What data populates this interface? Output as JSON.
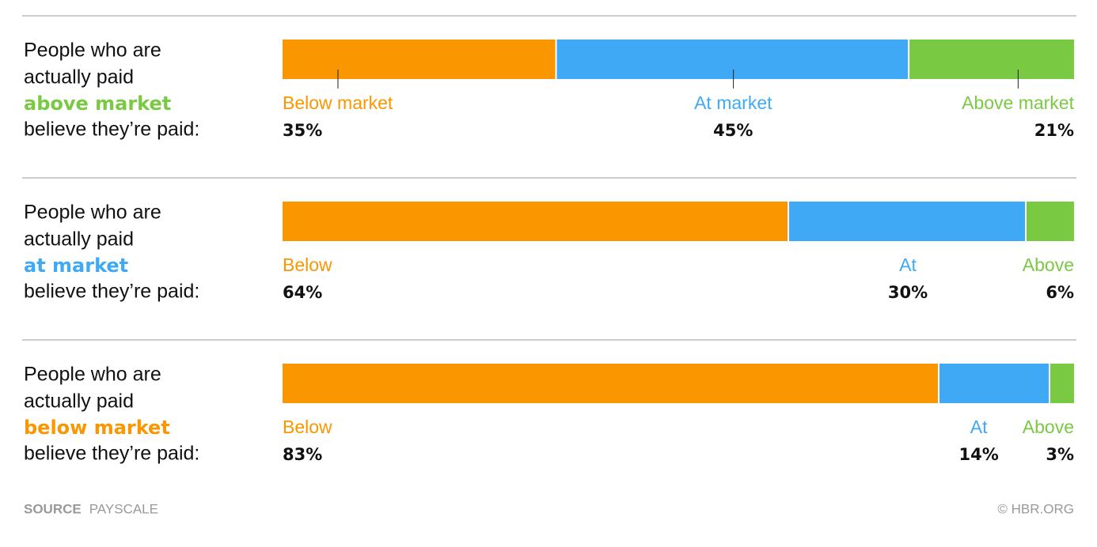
{
  "chart_data": [
    {
      "type": "bar",
      "stacked": true,
      "orientation": "horizontal",
      "leaders": true,
      "intro_lines": [
        "People who are",
        "actually paid"
      ],
      "group": "above market",
      "group_color": "#7ac943",
      "outro": "believe they’re paid:",
      "xlim": [
        0,
        101
      ],
      "series": [
        {
          "name": "Below market",
          "color": "#fa9600",
          "values": [
            35
          ],
          "value_labels": [
            "35%"
          ]
        },
        {
          "name": "At market",
          "color": "#3fa9f5",
          "values": [
            45
          ],
          "value_labels": [
            "45%"
          ]
        },
        {
          "name": "Above market",
          "color": "#7ac943",
          "values": [
            21
          ],
          "value_labels": [
            "21%"
          ]
        }
      ]
    },
    {
      "type": "bar",
      "stacked": true,
      "orientation": "horizontal",
      "leaders": false,
      "intro_lines": [
        "People who are",
        "actually paid"
      ],
      "group": "at market",
      "group_color": "#3fa9f5",
      "outro": "believe they’re paid:",
      "xlim": [
        0,
        100
      ],
      "series": [
        {
          "name": "Below",
          "color": "#fa9600",
          "values": [
            64
          ],
          "value_labels": [
            "64%"
          ]
        },
        {
          "name": "At",
          "color": "#3fa9f5",
          "values": [
            30
          ],
          "value_labels": [
            "30%"
          ]
        },
        {
          "name": "Above",
          "color": "#7ac943",
          "values": [
            6
          ],
          "value_labels": [
            "6%"
          ]
        }
      ]
    },
    {
      "type": "bar",
      "stacked": true,
      "orientation": "horizontal",
      "leaders": false,
      "intro_lines": [
        "People who are",
        "actually paid"
      ],
      "group": "below market",
      "group_color": "#fa9600",
      "outro": "believe they’re paid:",
      "xlim": [
        0,
        100
      ],
      "series": [
        {
          "name": "Below",
          "color": "#fa9600",
          "values": [
            83
          ],
          "value_labels": [
            "83%"
          ]
        },
        {
          "name": "At",
          "color": "#3fa9f5",
          "values": [
            14
          ],
          "value_labels": [
            "14%"
          ]
        },
        {
          "name": "Above",
          "color": "#7ac943",
          "values": [
            3
          ],
          "value_labels": [
            "3%"
          ]
        }
      ]
    }
  ],
  "footer": {
    "source_label": "SOURCE",
    "source": "PAYSCALE",
    "credit": "© HBR.ORG"
  }
}
